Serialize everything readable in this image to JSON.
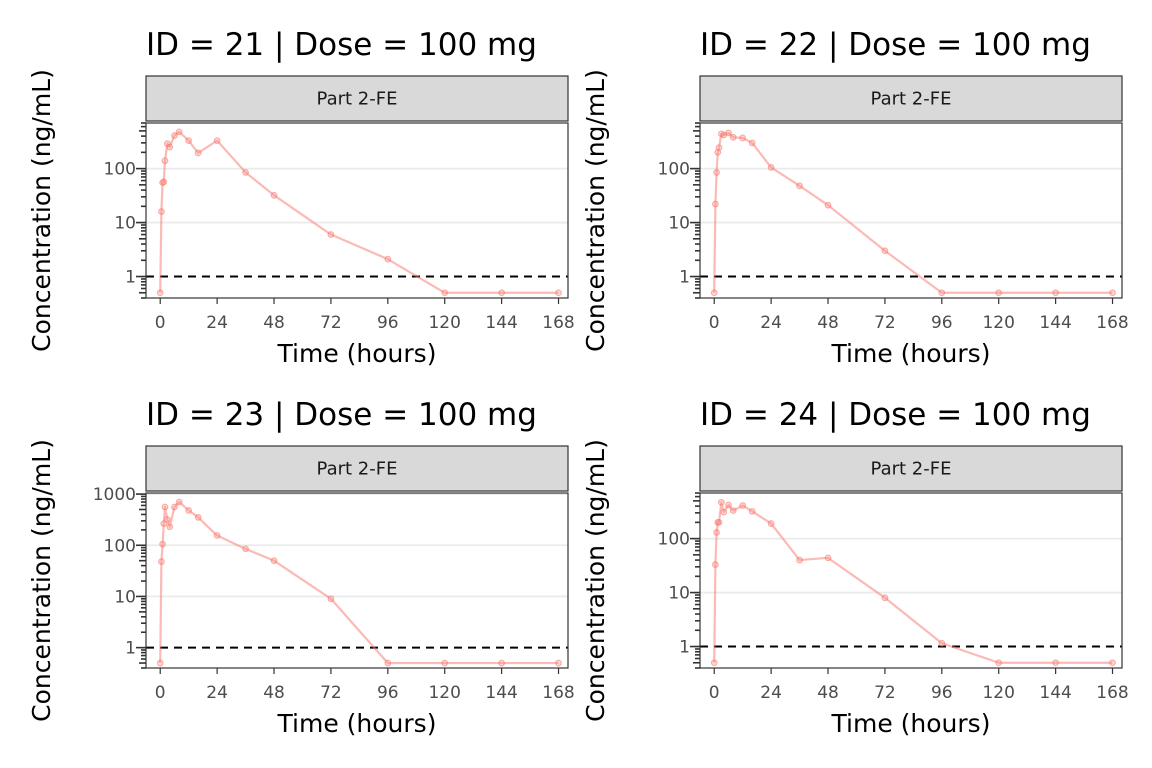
{
  "chart_data": [
    {
      "type": "line",
      "title": "ID = 21 | Dose = 100 mg",
      "facet_label": "Part 2-FE",
      "xlabel": "Time (hours)",
      "ylabel": "Concentration (ng/mL)",
      "y_scale": "log10",
      "xlim": [
        -6,
        172
      ],
      "ylim": [
        0.4,
        700
      ],
      "x_ticks": [
        0,
        24,
        48,
        72,
        96,
        120,
        144,
        168
      ],
      "y_ticks": [
        1,
        10,
        100
      ],
      "y_tick_labels": [
        "1",
        "10",
        "100"
      ],
      "reference_line": 1,
      "series_color": "#f8766d",
      "x": [
        0,
        0.5,
        1,
        1.5,
        2,
        3,
        4,
        6,
        8,
        12,
        16,
        24,
        36,
        48,
        72,
        96,
        120,
        144,
        168
      ],
      "y": [
        0.5,
        16,
        55,
        57,
        140,
        290,
        250,
        410,
        480,
        330,
        195,
        330,
        85,
        32,
        6,
        2.1,
        0.5,
        0.5,
        0.5
      ]
    },
    {
      "type": "line",
      "title": "ID = 22 | Dose = 100 mg",
      "facet_label": "Part 2-FE",
      "xlabel": "Time (hours)",
      "ylabel": "Concentration (ng/mL)",
      "y_scale": "log10",
      "xlim": [
        -6,
        172
      ],
      "ylim": [
        0.4,
        700
      ],
      "x_ticks": [
        0,
        24,
        48,
        72,
        96,
        120,
        144,
        168
      ],
      "y_ticks": [
        1,
        10,
        100
      ],
      "y_tick_labels": [
        "1",
        "10",
        "100"
      ],
      "reference_line": 1,
      "series_color": "#f8766d",
      "x": [
        0,
        0.5,
        1,
        1.5,
        2,
        3,
        4,
        6,
        8,
        12,
        16,
        24,
        36,
        48,
        72,
        96,
        120,
        144,
        168
      ],
      "y": [
        0.5,
        22,
        85,
        200,
        245,
        440,
        420,
        460,
        380,
        370,
        300,
        105,
        48,
        21,
        3,
        0.5,
        0.5,
        0.5,
        0.5
      ]
    },
    {
      "type": "line",
      "title": "ID = 23 | Dose = 100 mg",
      "facet_label": "Part 2-FE",
      "xlabel": "Time (hours)",
      "ylabel": "Concentration (ng/mL)",
      "y_scale": "log10",
      "xlim": [
        -6,
        172
      ],
      "ylim": [
        0.4,
        1050
      ],
      "x_ticks": [
        0,
        24,
        48,
        72,
        96,
        120,
        144,
        168
      ],
      "y_ticks": [
        1,
        10,
        100,
        1000
      ],
      "y_tick_labels": [
        "1",
        "10",
        "100",
        "1000"
      ],
      "reference_line": 1,
      "series_color": "#f8766d",
      "x": [
        0,
        0.5,
        1,
        1.5,
        2,
        3,
        4,
        6,
        8,
        12,
        16,
        24,
        36,
        48,
        72,
        96,
        120,
        144,
        168
      ],
      "y": [
        0.5,
        48,
        105,
        265,
        560,
        320,
        230,
        560,
        700,
        480,
        350,
        155,
        85,
        50,
        9,
        0.5,
        0.5,
        0.5,
        0.5
      ]
    },
    {
      "type": "line",
      "title": "ID = 24 | Dose = 100 mg",
      "facet_label": "Part 2-FE",
      "xlabel": "Time (hours)",
      "ylabel": "Concentration (ng/mL)",
      "y_scale": "log10",
      "xlim": [
        -6,
        172
      ],
      "ylim": [
        0.4,
        700
      ],
      "x_ticks": [
        0,
        24,
        48,
        72,
        96,
        120,
        144,
        168
      ],
      "y_ticks": [
        1,
        10,
        100
      ],
      "y_tick_labels": [
        "1",
        "10",
        "100"
      ],
      "reference_line": 1,
      "series_color": "#f8766d",
      "x": [
        0,
        0.5,
        1,
        1.5,
        2,
        3,
        4,
        6,
        8,
        12,
        16,
        24,
        36,
        48,
        72,
        96,
        120,
        144,
        168
      ],
      "y": [
        0.5,
        33,
        130,
        200,
        200,
        470,
        310,
        420,
        330,
        410,
        320,
        190,
        40,
        44,
        8,
        1.15,
        0.5,
        0.5,
        0.5
      ]
    }
  ]
}
